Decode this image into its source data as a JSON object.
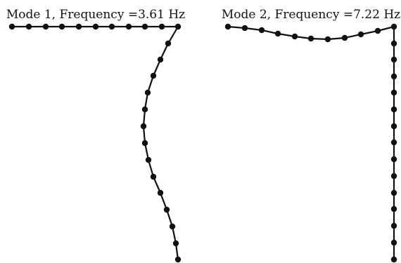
{
  "panels": [
    {
      "title": "Mode 1, Frequency =3.61 Hz"
    },
    {
      "title": "Mode 2, Frequency =7.22 Hz"
    }
  ],
  "colors": {
    "line": "#111111",
    "node": "#111111",
    "background": "#ffffff"
  }
}
